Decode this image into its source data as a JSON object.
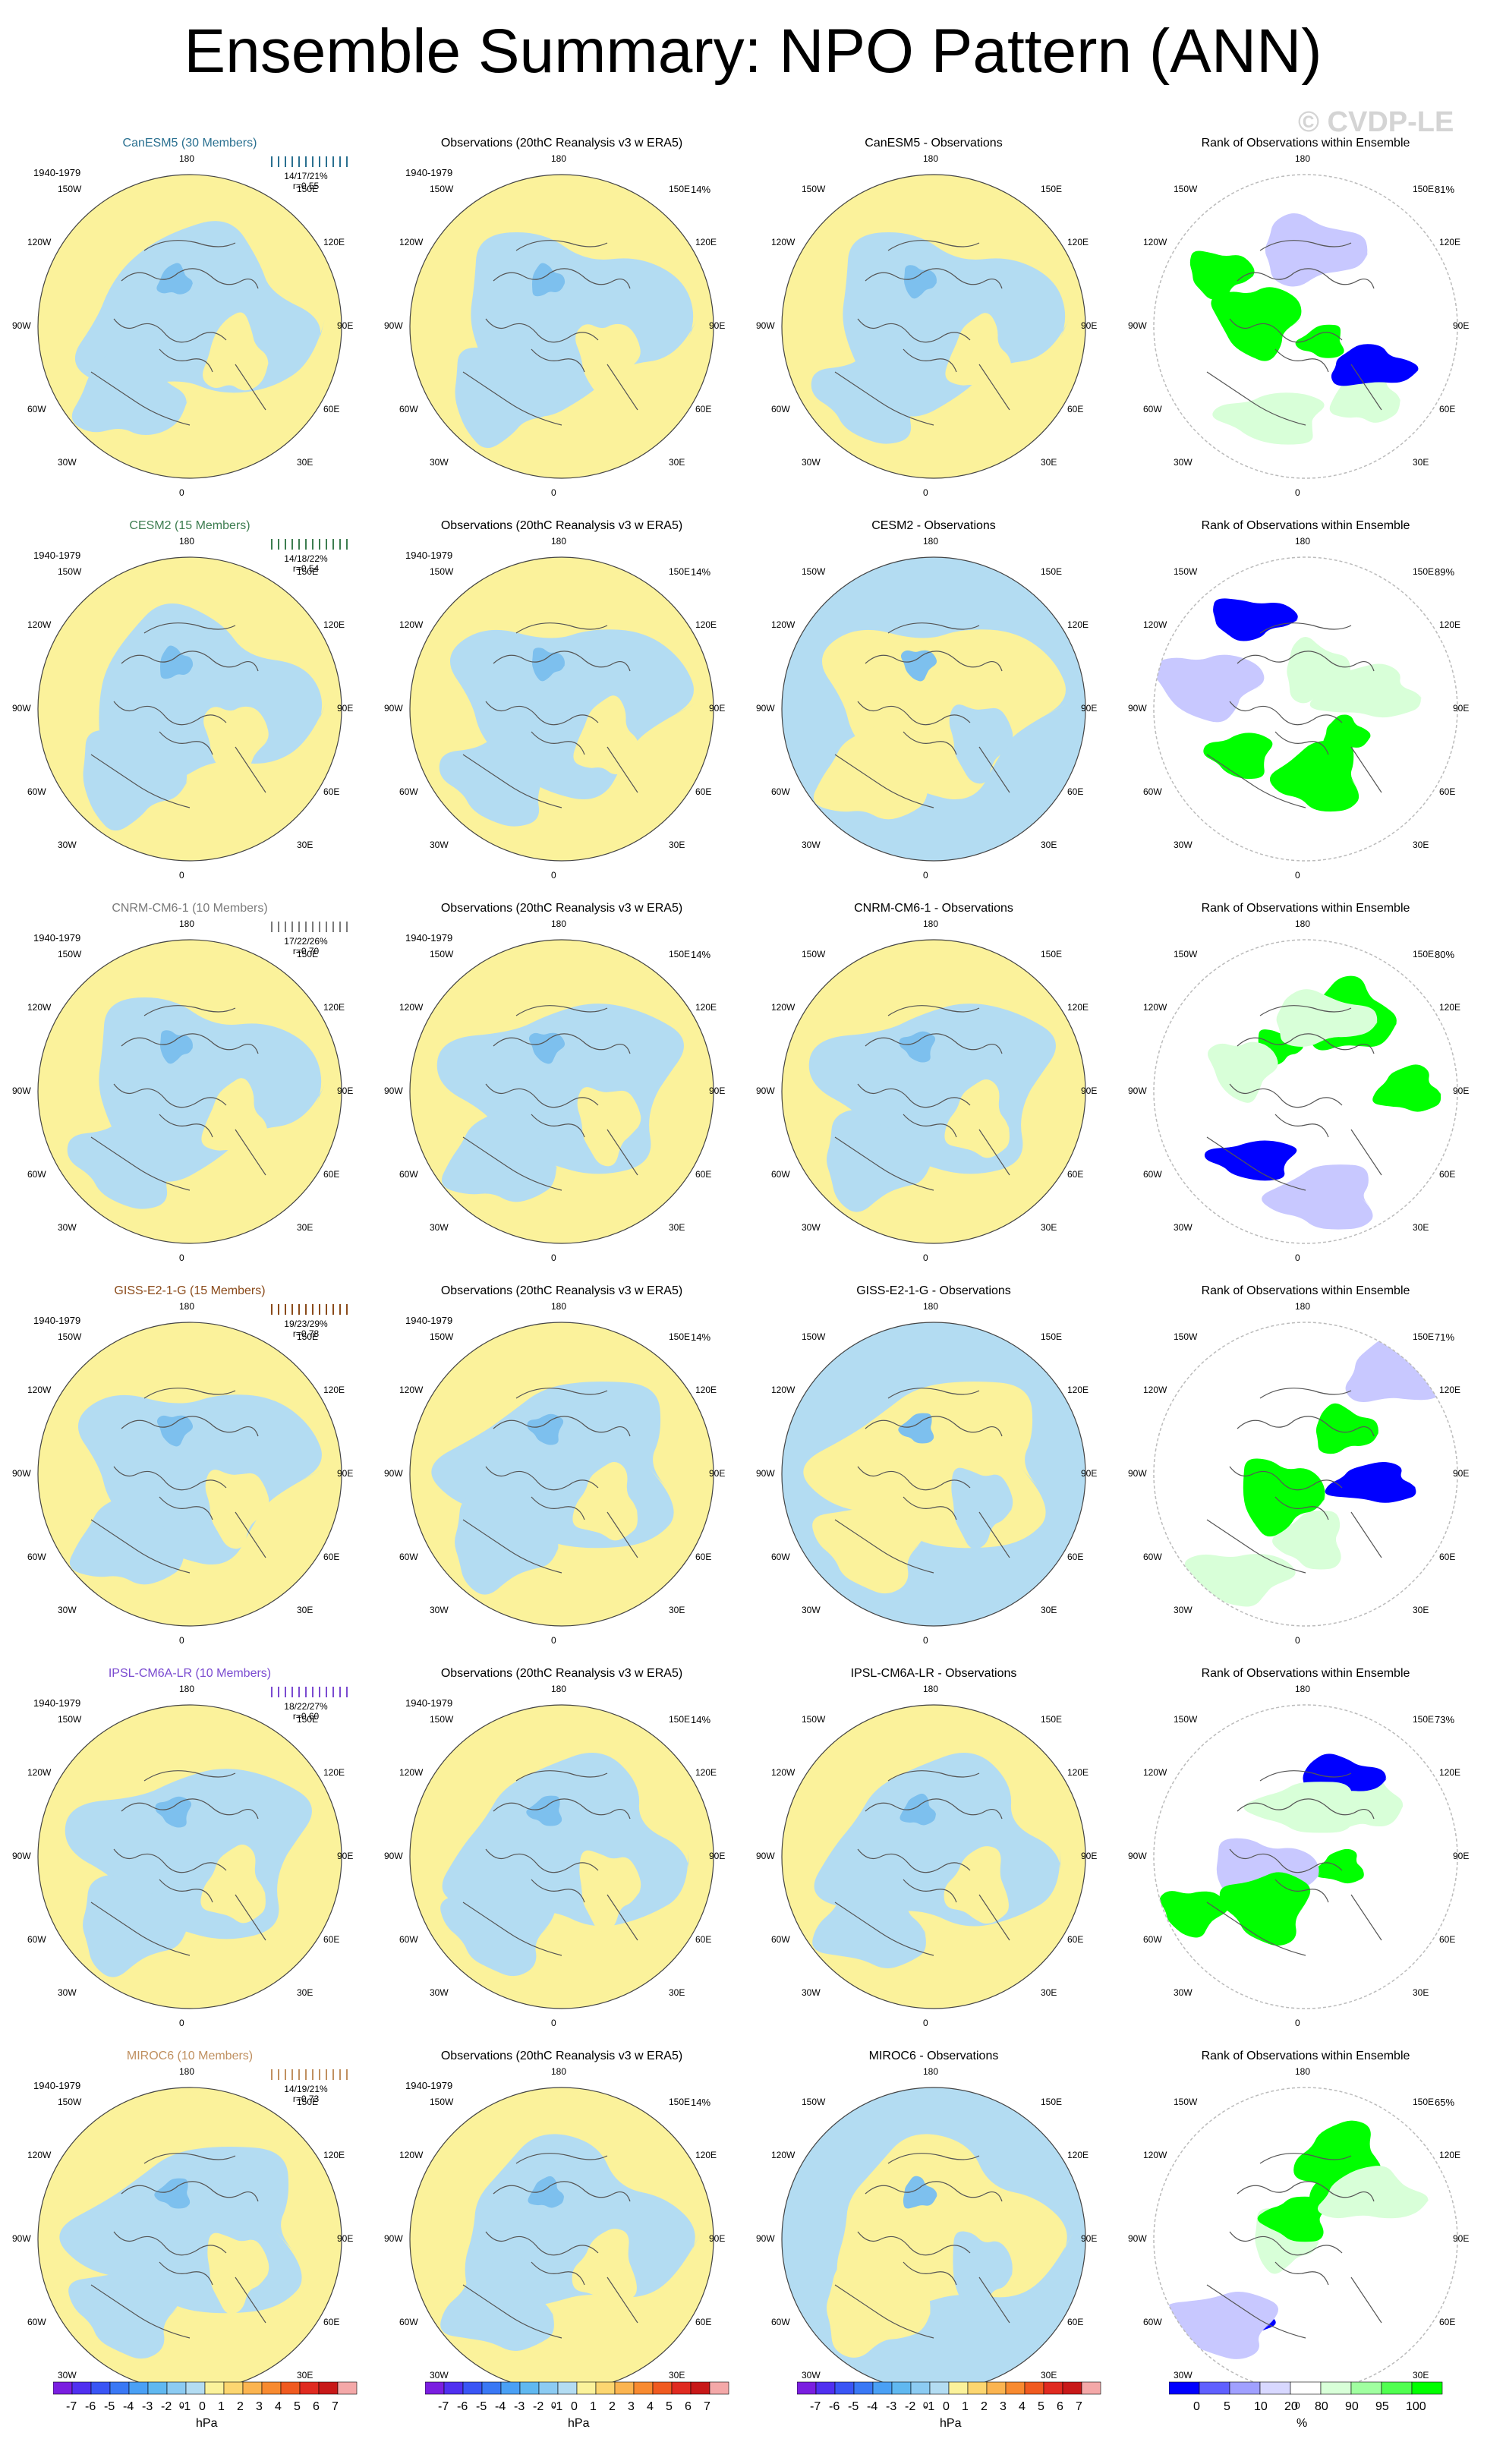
{
  "title": "Ensemble Summary: NPO Pattern (ANN)",
  "watermark": "© CVDP-LE",
  "colors": {
    "positive": "#fbf29b",
    "negative": "#b3dcf2",
    "negative_strong": "#7dc0ee",
    "rank_high": "#00ff00",
    "rank_mid": "#d8ffd8",
    "rank_low": "#0000ff",
    "rank_lowmid": "#c8c8ff"
  },
  "lon_labels": [
    "180",
    "150E",
    "120E",
    "90E",
    "60E",
    "30E",
    "0",
    "30W",
    "60W",
    "90W",
    "120W",
    "150W"
  ],
  "rows": [
    {
      "model": {
        "title": "CanESM5 (30 Members)",
        "color": "#2a7090",
        "period": "1940-1979",
        "stats1": "14/17/21%",
        "stats2": "r=0.55"
      },
      "obs": {
        "title": "Observations (20thC Reanalysis v3 w ERA5)",
        "period": "1940-1979",
        "pct": "14%"
      },
      "diff": {
        "title": "CanESM5 - Observations"
      },
      "rank": {
        "title": "Rank of Observations within Ensemble",
        "pct": "81%"
      }
    },
    {
      "model": {
        "title": "CESM2 (15 Members)",
        "color": "#3d7d50",
        "period": "1940-1979",
        "stats1": "14/18/22%",
        "stats2": "r=0.54"
      },
      "obs": {
        "title": "Observations (20thC Reanalysis v3 w ERA5)",
        "period": "1940-1979",
        "pct": "14%"
      },
      "diff": {
        "title": "CESM2 - Observations"
      },
      "rank": {
        "title": "Rank of Observations within Ensemble",
        "pct": "89%"
      }
    },
    {
      "model": {
        "title": "CNRM-CM6-1 (10 Members)",
        "color": "#7a7a7a",
        "period": "1940-1979",
        "stats1": "17/22/26%",
        "stats2": "r=0.70"
      },
      "obs": {
        "title": "Observations (20thC Reanalysis v3 w ERA5)",
        "period": "1940-1979",
        "pct": "14%"
      },
      "diff": {
        "title": "CNRM-CM6-1 - Observations"
      },
      "rank": {
        "title": "Rank of Observations within Ensemble",
        "pct": "80%"
      }
    },
    {
      "model": {
        "title": "GISS-E2-1-G (15 Members)",
        "color": "#8a4a1a",
        "period": "1940-1979",
        "stats1": "19/23/29%",
        "stats2": "r=0.78"
      },
      "obs": {
        "title": "Observations (20thC Reanalysis v3 w ERA5)",
        "period": "1940-1979",
        "pct": "14%"
      },
      "diff": {
        "title": "GISS-E2-1-G - Observations"
      },
      "rank": {
        "title": "Rank of Observations within Ensemble",
        "pct": "71%"
      }
    },
    {
      "model": {
        "title": "IPSL-CM6A-LR (10 Members)",
        "color": "#7a4ad0",
        "period": "1940-1979",
        "stats1": "18/22/27%",
        "stats2": "r=0.60"
      },
      "obs": {
        "title": "Observations (20thC Reanalysis v3 w ERA5)",
        "period": "1940-1979",
        "pct": "14%"
      },
      "diff": {
        "title": "IPSL-CM6A-LR - Observations"
      },
      "rank": {
        "title": "Rank of Observations within Ensemble",
        "pct": "73%"
      }
    },
    {
      "model": {
        "title": "MIROC6 (10 Members)",
        "color": "#c09060",
        "period": "1940-1979",
        "stats1": "14/19/21%",
        "stats2": "r=0.73"
      },
      "obs": {
        "title": "Observations (20thC Reanalysis v3 w ERA5)",
        "period": "1940-1979",
        "pct": "14%"
      },
      "diff": {
        "title": "MIROC6 - Observations"
      },
      "rank": {
        "title": "Rank of Observations within Ensemble",
        "pct": "65%"
      }
    }
  ],
  "colorbar_hpa": {
    "unit": "hPa",
    "labels": [
      "-7",
      "-6",
      "-5",
      "-4",
      "-3",
      "-2",
      "-1",
      "0",
      "1",
      "2",
      "3",
      "4",
      "5",
      "6",
      "7"
    ],
    "colors": [
      "#7a1ee0",
      "#5030f0",
      "#3a55f5",
      "#3a78f5",
      "#4aa0f5",
      "#60b8f0",
      "#8ccbf2",
      "#b3dcf2",
      "#fbf29b",
      "#fcd670",
      "#fbb450",
      "#f88a30",
      "#f05a20",
      "#e02a20",
      "#c81818",
      "#f4a8a8"
    ]
  },
  "colorbar_rank": {
    "unit": "%",
    "labels": [
      "0",
      "5",
      "10",
      "20",
      "80",
      "90",
      "95",
      "100"
    ],
    "colors": [
      "#0000ff",
      "#6060ff",
      "#a0a0ff",
      "#d8d8ff",
      "#ffffff",
      "#d8ffd8",
      "#a0ffa0",
      "#50ff50",
      "#00ff00"
    ]
  }
}
